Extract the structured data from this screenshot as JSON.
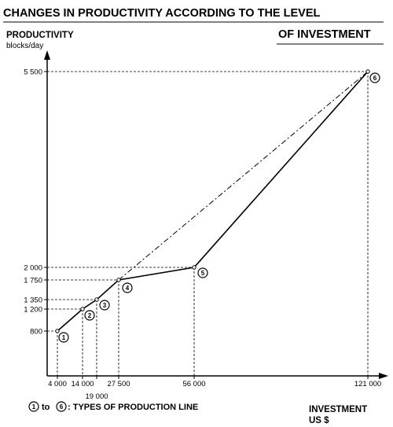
{
  "chart_data": {
    "type": "line",
    "title_line1": "CHANGES IN PRODUCTIVITY ACCORDING TO THE LEVEL",
    "title_line2": "OF INVESTMENT",
    "ylabel_line1": "PRODUCTIVITY",
    "ylabel_line2": "blocks/day",
    "xlabel_line1": "INVESTMENT",
    "xlabel_line2": "US $",
    "x_tick_labels": [
      "4 000",
      "14 000",
      "19 000",
      "27 500",
      "56 000",
      "121 000"
    ],
    "y_tick_labels": [
      "800",
      "1 200",
      "1 350",
      "1 750",
      "2 000",
      "5 500"
    ],
    "points": [
      {
        "label": "1",
        "x": 4000,
        "y": 800
      },
      {
        "label": "2",
        "x": 14000,
        "y": 1200
      },
      {
        "label": "3",
        "x": 19000,
        "y": 1350
      },
      {
        "label": "4",
        "x": 27500,
        "y": 1750
      },
      {
        "label": "5",
        "x": 56000,
        "y": 2000
      },
      {
        "label": "6",
        "x": 121000,
        "y": 5500
      }
    ],
    "series": [
      {
        "style": "solid",
        "points": [
          "1",
          "2",
          "3",
          "4",
          "5",
          "6"
        ]
      },
      {
        "style": "dash-dot",
        "points": [
          "4",
          "6"
        ]
      }
    ],
    "legend": {
      "from": "1",
      "to_word": "to",
      "to": "6",
      "text": ": TYPES OF PRODUCTION LINE"
    }
  }
}
